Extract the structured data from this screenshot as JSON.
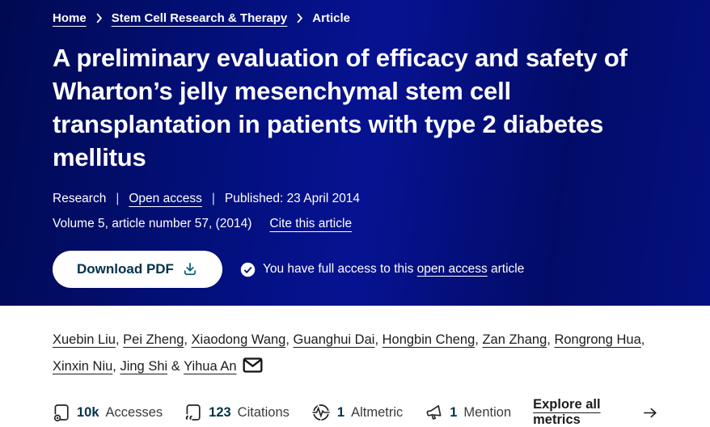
{
  "colors": {
    "header_bg": "#03107e",
    "header_text": "#ffffff",
    "button_bg": "#ffffff",
    "button_text": "#01324b",
    "button_icon": "#0c5e73",
    "body_text": "#1f1f1f",
    "metric_value": "#01324b"
  },
  "breadcrumb": {
    "items": [
      {
        "label": "Home",
        "link": true
      },
      {
        "label": "Stem Cell Research & Therapy",
        "link": true
      },
      {
        "label": "Article",
        "link": false
      }
    ]
  },
  "article": {
    "title": "A preliminary evaluation of efficacy and safety of Wharton’s jelly mesenchymal stem cell transplantation in patients with type 2 diabetes mellitus",
    "type_label": "Research",
    "divider": "|",
    "access_label": "Open access",
    "published_label": "Published: 23 April 2014",
    "volume_info": "Volume 5, article number 57, (2014)",
    "cite_link": "Cite this article",
    "download_button": "Download PDF",
    "access_note_prefix": "You have full access to this",
    "access_note_link": "open access",
    "access_note_suffix": "article"
  },
  "authors": {
    "names": [
      "Xuebin Liu",
      "Pei Zheng",
      "Xiaodong Wang",
      "Guanghui Dai",
      "Hongbin Cheng",
      "Zan Zhang",
      "Rongrong Hua",
      "Xinxin Niu",
      "Jing Shi",
      "Yihua An"
    ],
    "separator": ", ",
    "joiner": "&",
    "has_email_icon": true
  },
  "metrics": {
    "items": [
      {
        "icon": "accesses-icon",
        "value": "10k",
        "label": "Accesses"
      },
      {
        "icon": "citations-icon",
        "value": "123",
        "label": "Citations"
      },
      {
        "icon": "altmetric-icon",
        "value": "1",
        "label": "Altmetric"
      },
      {
        "icon": "mention-icon",
        "value": "1",
        "label": "Mention"
      }
    ],
    "explore_label": "Explore all metrics"
  }
}
